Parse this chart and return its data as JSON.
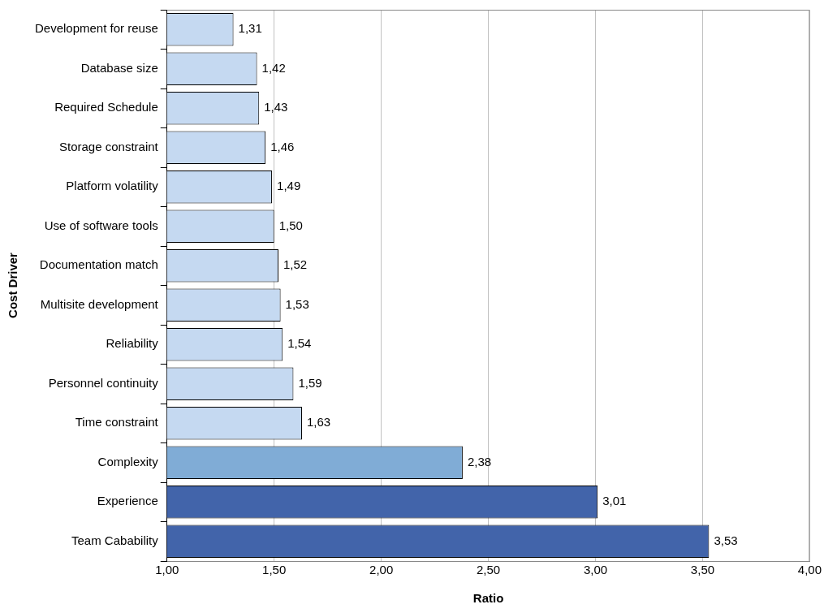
{
  "chart_data": {
    "type": "bar",
    "orientation": "horizontal",
    "xlabel": "Ratio",
    "ylabel": "Cost Driver",
    "categories": [
      "Development for reuse",
      "Database size",
      "Required Schedule",
      "Storage constraint",
      "Platform volatility",
      "Use of software tools",
      "Documentation match",
      "Multisite development",
      "Reliability",
      "Personnel continuity",
      "Time constraint",
      "Complexity",
      "Experience",
      "Team Cabability"
    ],
    "values": [
      1.31,
      1.42,
      1.43,
      1.46,
      1.49,
      1.5,
      1.52,
      1.53,
      1.54,
      1.59,
      1.63,
      2.38,
      3.01,
      3.53
    ],
    "value_labels": [
      "1,31",
      "1,42",
      "1,43",
      "1,46",
      "1,49",
      "1,50",
      "1,52",
      "1,53",
      "1,54",
      "1,59",
      "1,63",
      "2,38",
      "3,01",
      "3,53"
    ],
    "colors": [
      "#c5d9f1",
      "#c5d9f1",
      "#c5d9f1",
      "#c5d9f1",
      "#c5d9f1",
      "#c5d9f1",
      "#c5d9f1",
      "#c5d9f1",
      "#c5d9f1",
      "#c5d9f1",
      "#c5d9f1",
      "#80acd6",
      "#4264aa",
      "#4264aa"
    ],
    "xlim": [
      1,
      4
    ],
    "xticks": [
      {
        "value": 1,
        "label": "1,00"
      },
      {
        "value": 1.5,
        "label": "1,50"
      },
      {
        "value": 2,
        "label": "2,00"
      },
      {
        "value": 2.5,
        "label": "2,50"
      },
      {
        "value": 3,
        "label": "3,00"
      },
      {
        "value": 3.5,
        "label": "3,50"
      },
      {
        "value": 4,
        "label": "4,00"
      }
    ],
    "grid": "x",
    "legend": false
  }
}
